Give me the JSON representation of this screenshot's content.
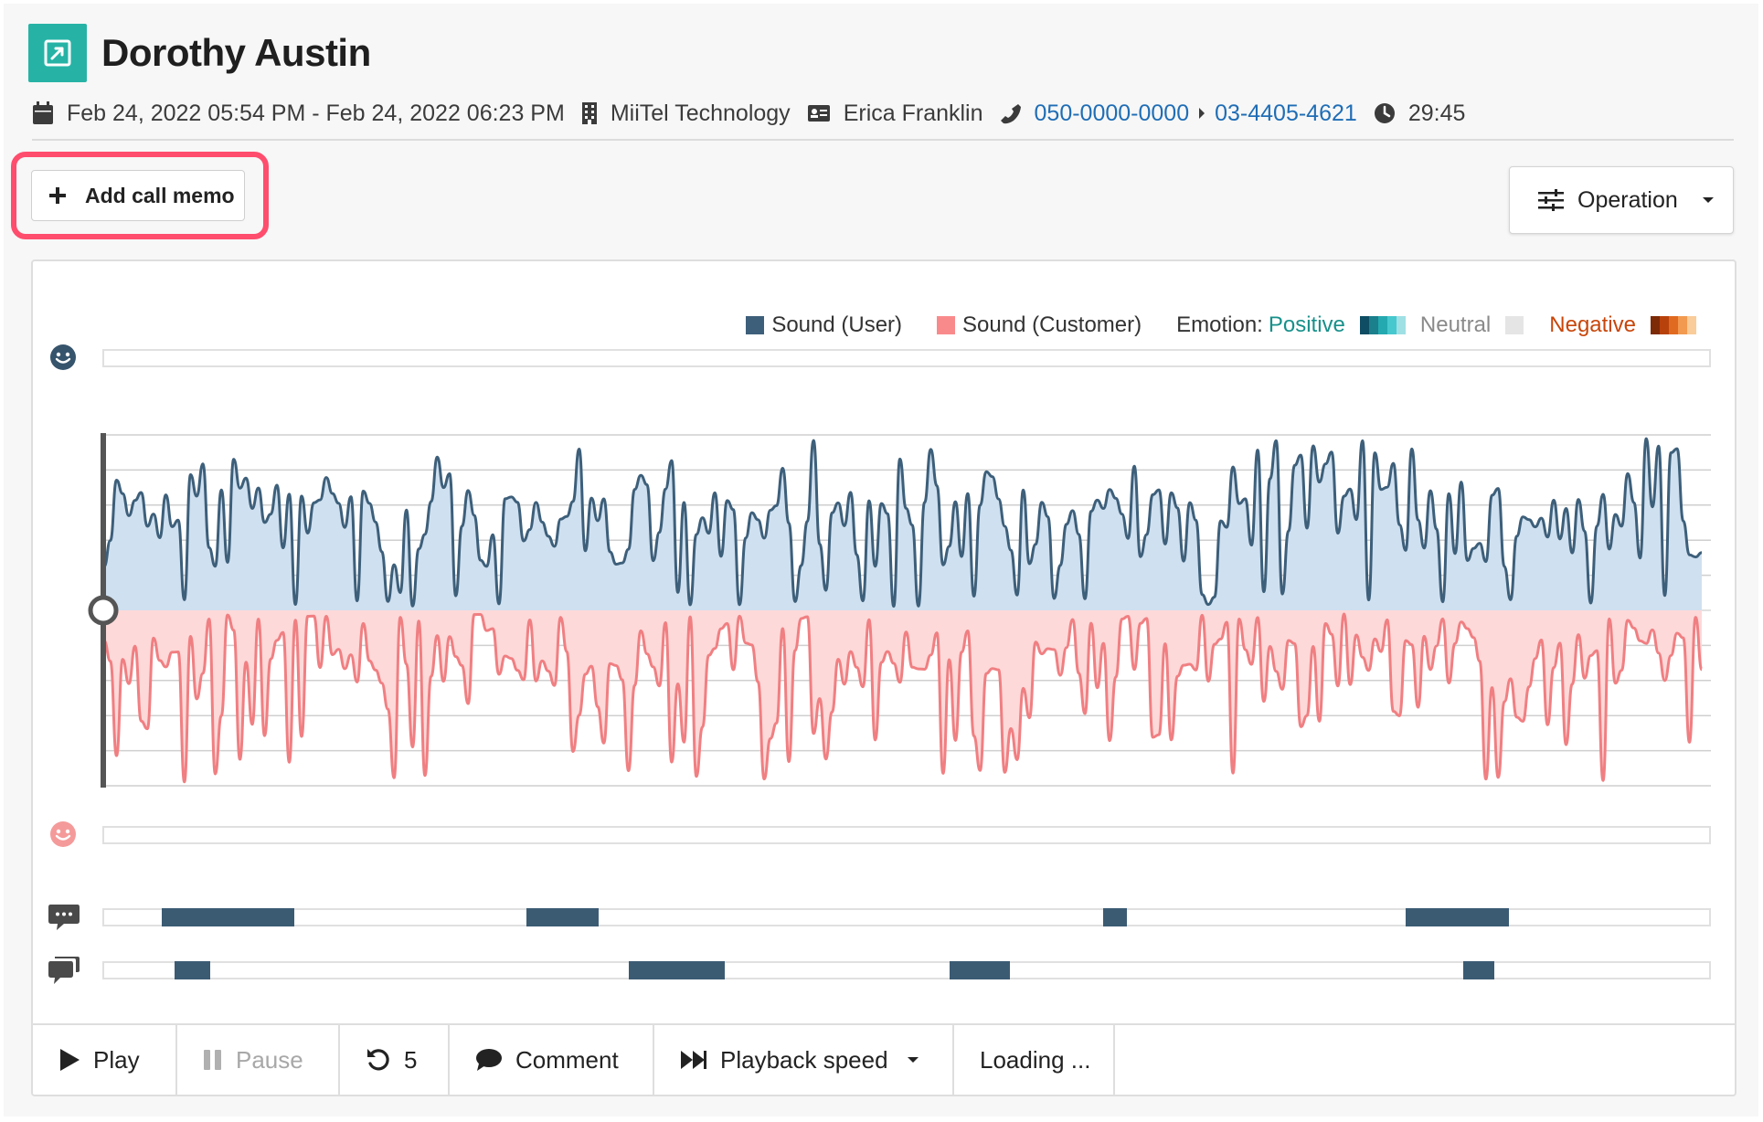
{
  "header": {
    "title": "Dorothy Austin",
    "datetime": "Feb 24, 2022 05:54 PM - Feb 24, 2022 06:23 PM",
    "company": "MiiTel Technology",
    "contact": "Erica Franklin",
    "phone_from": "050-0000-0000",
    "phone_to": "03-4405-4621",
    "duration": "29:45"
  },
  "toolbar": {
    "add_memo_label": "Add call memo",
    "operation_label": "Operation"
  },
  "legend": {
    "user_label": "Sound (User)",
    "customer_label": "Sound (Customer)",
    "emotion_label": "Emotion:",
    "positive_label": "Positive",
    "neutral_label": "Neutral",
    "negative_label": "Negative"
  },
  "colors": {
    "accent": "#26b3a6",
    "user_line": "#3d5f7a",
    "user_fill": "#cfe0f0",
    "customer_line": "#f07f82",
    "customer_fill": "#fdd9d9",
    "talk_segment": "#3b5b73",
    "highlight": "#ff4d6d",
    "link": "#1f6db5"
  },
  "icons": {
    "brand": "external-link-icon",
    "date": "calendar-icon",
    "company": "building-icon",
    "contact": "id-card-icon",
    "phone": "phone-icon",
    "duration": "clock-icon",
    "user_emotion": "smile-icon-user",
    "customer_emotion": "smile-icon-customer",
    "user_talk": "speech-bubble-icon",
    "customer_talk": "comments-icon"
  },
  "talk_segments": {
    "user": [
      [
        0.0361,
        0.1182
      ],
      [
        0.2632,
        0.3083
      ],
      [
        0.6227,
        0.637
      ],
      [
        0.8111,
        0.8753
      ]
    ],
    "customer": [
      [
        0.0437,
        0.0659
      ],
      [
        0.3269,
        0.3869
      ],
      [
        0.5265,
        0.5646
      ],
      [
        0.8467,
        0.8663
      ]
    ]
  },
  "controls": {
    "play_label": "Play",
    "pause_label": "Pause",
    "rewind_label": "5",
    "comment_label": "Comment",
    "speed_label": "Playback speed",
    "status_label": "Loading ..."
  }
}
